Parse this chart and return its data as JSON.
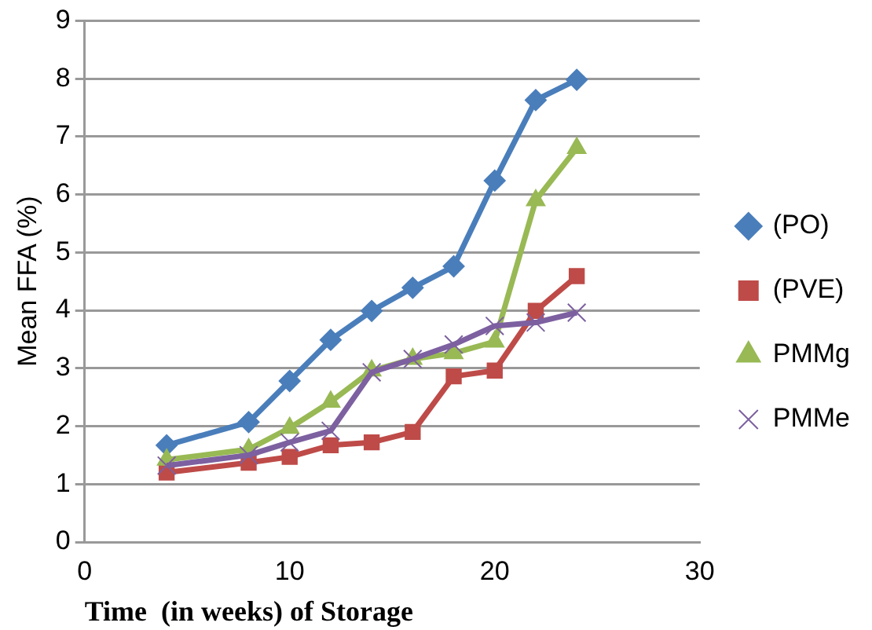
{
  "chart_data": {
    "type": "line",
    "xlabel": "Time  (in weeks) of Storage",
    "ylabel": "Mean FFA (%)",
    "x": [
      4,
      8,
      10,
      12,
      14,
      16,
      18,
      20,
      22,
      24
    ],
    "series": [
      {
        "name": "(PO)",
        "color": "#4a7ebb",
        "marker": "diamond",
        "values": [
          1.67,
          2.07,
          2.78,
          3.49,
          3.99,
          4.39,
          4.76,
          6.24,
          7.63,
          7.98
        ]
      },
      {
        "name": "(PVE)",
        "color": "#be4b48",
        "marker": "square",
        "values": [
          1.2,
          1.37,
          1.47,
          1.67,
          1.72,
          1.9,
          2.86,
          2.96,
          3.99,
          4.59
        ]
      },
      {
        "name": "PMMg",
        "color": "#98b954",
        "marker": "triangle",
        "values": [
          1.42,
          1.6,
          1.97,
          2.42,
          2.96,
          3.16,
          3.26,
          3.46,
          5.9,
          6.8
        ]
      },
      {
        "name": "PMMe",
        "color": "#7d60a0",
        "marker": "cross",
        "values": [
          1.32,
          1.5,
          1.72,
          1.92,
          2.93,
          3.16,
          3.41,
          3.73,
          3.79,
          3.96
        ]
      }
    ],
    "xlim": [
      0,
      30
    ],
    "xticks": [
      0,
      10,
      20,
      30
    ],
    "ylim": [
      0,
      9
    ],
    "yticks": [
      0,
      1,
      2,
      3,
      4,
      5,
      6,
      7,
      8,
      9
    ],
    "grid": "y",
    "legend": "right",
    "line_style": "solid"
  }
}
